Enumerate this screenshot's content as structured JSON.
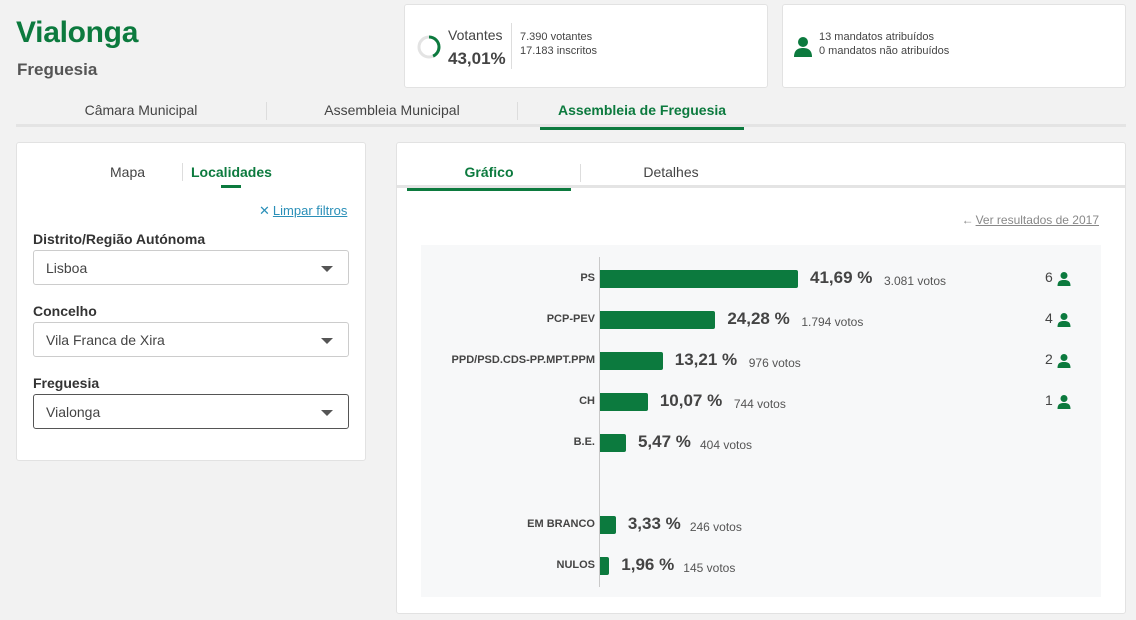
{
  "header": {
    "title": "Vialonga",
    "subtitle": "Freguesia"
  },
  "votantes": {
    "label": "Votantes",
    "percentage": "43,01%",
    "votantes_text": "7.390 votantes",
    "inscritos_text": "17.183 inscritos",
    "ring_fraction": 0.4301,
    "accent": "#0c7a3e"
  },
  "mandatos": {
    "icon": "person-icon",
    "atribuidos_text": "13 mandatos atribuídos",
    "nao_atribuidos_text": "0 mandatos não atribuídos"
  },
  "main_tabs": [
    {
      "label": "Câmara Municipal",
      "active": false
    },
    {
      "label": "Assembleia Municipal",
      "active": false
    },
    {
      "label": "Assembleia de Freguesia",
      "active": true
    }
  ],
  "filters": {
    "tabs": [
      {
        "label": "Mapa",
        "active": false
      },
      {
        "label": "Localidades",
        "active": true
      }
    ],
    "clear_label": "Limpar filtros",
    "fields": [
      {
        "label": "Distrito/Região Autónoma",
        "value": "Lisboa"
      },
      {
        "label": "Concelho",
        "value": "Vila Franca de Xira"
      },
      {
        "label": "Freguesia",
        "value": "Vialonga"
      }
    ]
  },
  "chart_tabs": [
    {
      "label": "Gráfico",
      "active": true
    },
    {
      "label": "Detalhes",
      "active": false
    }
  ],
  "previous_results_label": "Ver resultados de 2017",
  "chart_data": {
    "type": "bar",
    "orientation": "horizontal",
    "categories": [
      "PS",
      "PCP-PEV",
      "PPD/PSD.CDS-PP.MPT.PPM",
      "CH",
      "B.E.",
      "EM BRANCO",
      "NULOS"
    ],
    "values": [
      41.69,
      24.28,
      13.21,
      10.07,
      5.47,
      3.33,
      1.96
    ],
    "value_labels": [
      "41,69 %",
      "24,28 %",
      "13,21 %",
      "10,07 %",
      "5,47 %",
      "3,33 %",
      "1,96 %"
    ],
    "votes_labels": [
      "3.081 votos",
      "1.794 votos",
      "976 votos",
      "744 votos",
      "404 votos",
      "246 votos",
      "145 votos"
    ],
    "seats": [
      6,
      4,
      2,
      1,
      null,
      null,
      null
    ],
    "bar_color": "#0c7a3e"
  }
}
